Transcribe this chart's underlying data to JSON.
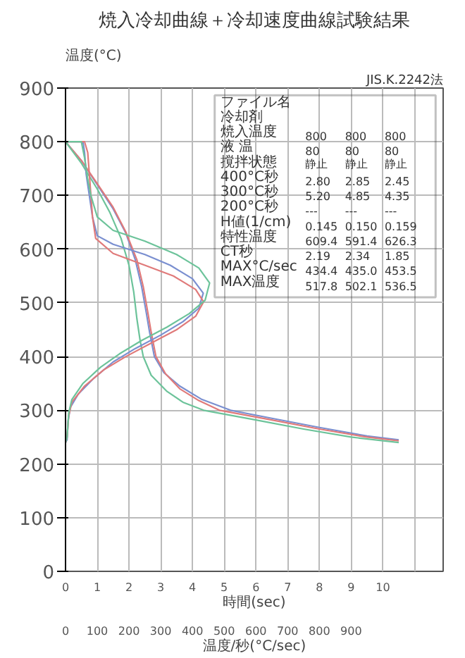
{
  "chart_data": {
    "type": "line",
    "title": "焼入冷却曲線＋冷却速度曲線試験結果",
    "ylabel": "温度(°C)",
    "xlabel": "時間(sec)",
    "x2label": "温度/秒(°C/sec)",
    "xlim": [
      0,
      11.9
    ],
    "xticks": [
      0,
      1,
      2,
      3,
      4,
      5,
      6,
      7,
      8,
      9,
      10,
      {
        "value": 11,
        "label": null
      }
    ],
    "x2lim": [
      0,
      1190
    ],
    "x2ticks": [
      0,
      100,
      200,
      300,
      400,
      500,
      600,
      700,
      800,
      900
    ],
    "ylim": [
      0,
      900
    ],
    "yticks": [
      0,
      100,
      200,
      300,
      400,
      500,
      600,
      700,
      800,
      900
    ],
    "grid": true,
    "line_style": "solid",
    "series": [
      {
        "color": "#7a8fd0",
        "x": [
          0,
          0.5,
          1,
          1.5,
          1.9,
          2.2,
          2.4,
          2.55,
          2.65,
          2.8,
          3.1,
          3.6,
          4.3,
          5.2,
          6.5,
          8,
          9.5,
          10.5
        ],
        "values": [
          800,
          765,
          720,
          675,
          630,
          580,
          530,
          480,
          445,
          400,
          370,
          345,
          320,
          300,
          285,
          268,
          252,
          245
        ]
      },
      {
        "color": "#e07a7a",
        "x": [
          0,
          0.5,
          1,
          1.5,
          1.9,
          2.25,
          2.45,
          2.6,
          2.7,
          2.85,
          3.15,
          3.6,
          4.2,
          4.85,
          6.5,
          8,
          9.5,
          10.5
        ],
        "values": [
          800,
          765,
          722,
          678,
          632,
          580,
          530,
          480,
          445,
          400,
          368,
          340,
          318,
          300,
          282,
          265,
          250,
          243
        ]
      },
      {
        "color": "#6cc39a",
        "x": [
          0,
          0.5,
          1,
          1.4,
          1.75,
          2.0,
          2.15,
          2.25,
          2.35,
          2.45,
          2.7,
          3.2,
          3.7,
          4.35,
          6,
          7.5,
          9,
          10.5
        ],
        "values": [
          800,
          760,
          712,
          668,
          620,
          570,
          520,
          470,
          430,
          400,
          365,
          335,
          315,
          300,
          282,
          265,
          250,
          240
        ]
      },
      {
        "color": "#7a8fd0",
        "axis": "x2",
        "x": [
          0,
          55,
          60,
          65,
          75,
          85,
          100,
          150,
          250,
          330,
          400,
          434,
          420,
          370,
          300,
          220,
          150,
          90,
          40,
          15,
          8,
          5,
          0
        ],
        "values": [
          800,
          800,
          780,
          740,
          700,
          660,
          625,
          609,
          590,
          570,
          545,
          518,
          490,
          465,
          440,
          415,
          390,
          360,
          330,
          305,
          280,
          245,
          240
        ]
      },
      {
        "color": "#e07a7a",
        "axis": "x2",
        "x": [
          0,
          60,
          70,
          75,
          80,
          85,
          95,
          150,
          250,
          340,
          410,
          435,
          410,
          350,
          270,
          190,
          120,
          60,
          20,
          10,
          5,
          0
        ],
        "values": [
          800,
          800,
          780,
          740,
          700,
          660,
          620,
          592,
          570,
          550,
          525,
          502,
          475,
          450,
          425,
          400,
          375,
          345,
          315,
          290,
          250,
          240
        ]
      },
      {
        "color": "#6cc39a",
        "axis": "x2",
        "x": [
          0,
          50,
          60,
          70,
          80,
          100,
          150,
          250,
          350,
          420,
          454,
          440,
          390,
          320,
          240,
          170,
          110,
          55,
          20,
          10,
          5,
          0
        ],
        "values": [
          800,
          800,
          770,
          730,
          700,
          660,
          635,
          615,
          590,
          565,
          537,
          505,
          480,
          455,
          430,
          405,
          380,
          350,
          320,
          295,
          250,
          240
        ]
      }
    ],
    "annotations": [
      "JIS.K.2242法",
      "ファイル名",
      "冷却剤",
      "焼入温度  800  800  800",
      "液 温  80  80  80",
      "撹拌状態  静止  静止  静止",
      "400°C秒  2.80  2.85  2.45",
      "300°C秒  5.20  4.85  4.35",
      "200°C秒  ---  ---  ---",
      "H値(1/cm)  0.145  0.150  0.159",
      "特性温度  609.4  591.4  626.3",
      "CT秒  2.19  2.34  1.85",
      "MAX°C/sec  434.4  435.0  453.5",
      "MAX温度  517.8  502.1  536.5"
    ]
  }
}
